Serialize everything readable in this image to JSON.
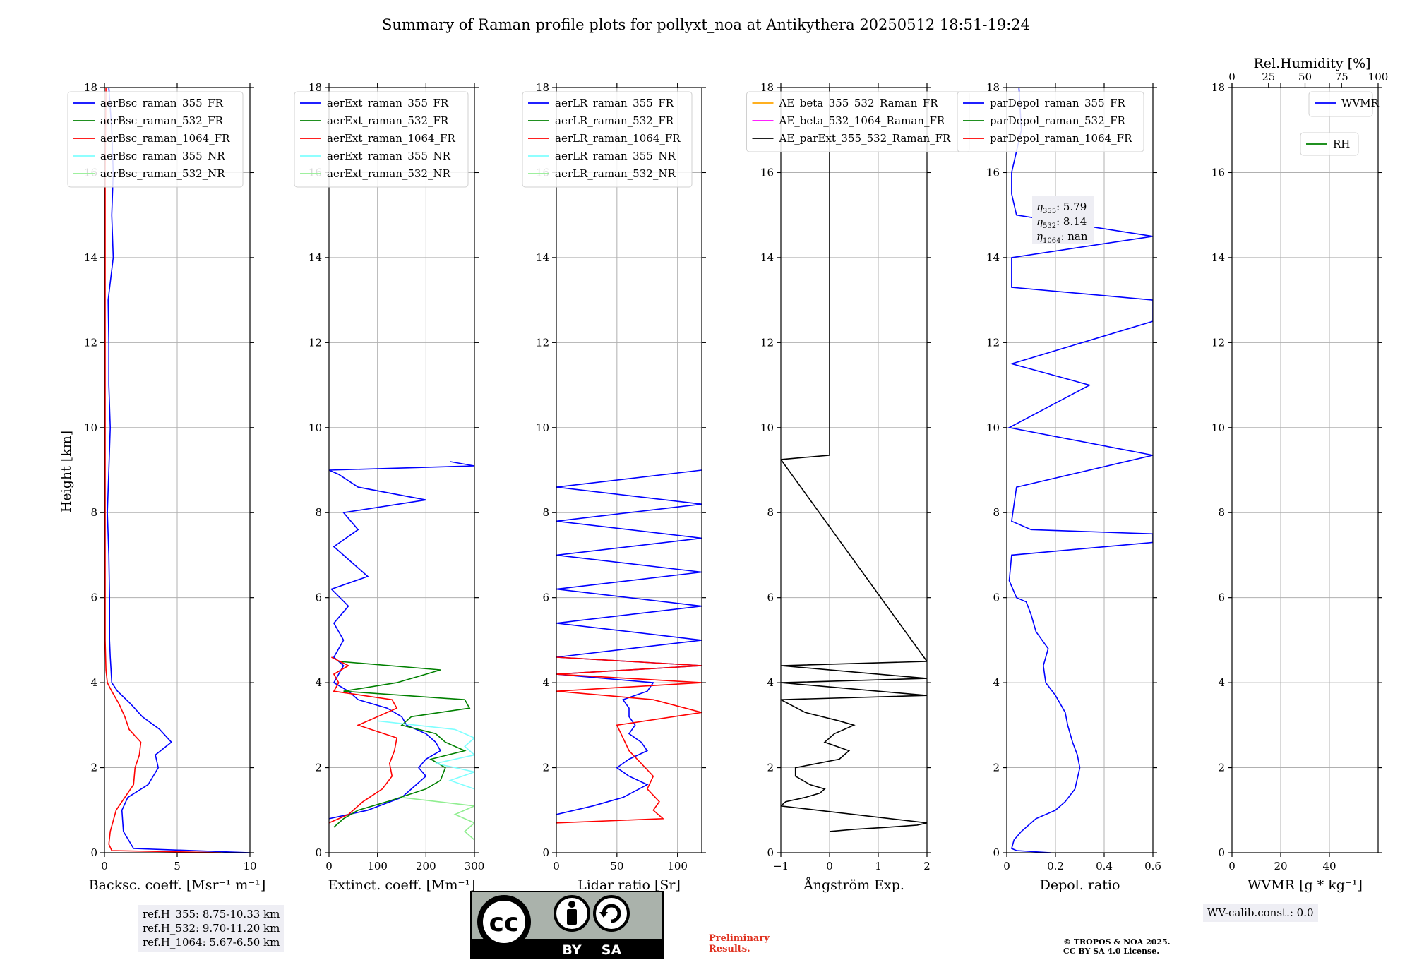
{
  "title": "Summary of Raman profile plots for pollyxt_noa at Antikythera 20250512 18:51-19:24",
  "colors": {
    "blue": "#0000ff",
    "green": "#008000",
    "red": "#ff0000",
    "cyan": "#7fffff",
    "light_green": "#90ee90",
    "orange": "#ffa500",
    "magenta": "#ff00ff",
    "black": "#000000",
    "note_bg": "#eeeef4",
    "grid": "#b0b0b0"
  },
  "y_axis": {
    "label": "Height [km]",
    "ylim": [
      0,
      18
    ],
    "ticks": [
      0,
      2,
      4,
      6,
      8,
      10,
      12,
      14,
      16,
      18
    ]
  },
  "chart_data": [
    {
      "type": "line",
      "xlabel": "Backsc. coeff. [Msr⁻¹ m⁻¹]",
      "xlim": [
        0,
        10
      ],
      "xticks": [
        0,
        5,
        10
      ],
      "grid": true,
      "legend_position": "top-left",
      "series": [
        {
          "name": "aerBsc_raman_355_FR",
          "color": "#0000ff",
          "y": [
            0,
            0.1,
            0.5,
            1.0,
            1.3,
            1.6,
            2.0,
            2.3,
            2.6,
            2.9,
            3.2,
            3.5,
            3.8,
            4.0,
            4.3,
            4.6,
            5.0,
            6.0,
            7.0,
            8.0,
            9.0,
            10.0,
            11.0,
            12.0,
            13.0,
            14.0,
            15.0,
            16.0,
            17.0,
            18.0
          ],
          "x": [
            10.0,
            2.0,
            1.3,
            1.2,
            1.6,
            3.0,
            3.7,
            3.5,
            4.6,
            3.8,
            2.6,
            1.8,
            0.9,
            0.5,
            0.45,
            0.4,
            0.35,
            0.35,
            0.3,
            0.2,
            0.3,
            0.4,
            0.3,
            0.3,
            0.25,
            0.6,
            0.5,
            0.6,
            0.5,
            0.3
          ]
        },
        {
          "name": "aerBsc_raman_532_FR",
          "color": "#008000",
          "y": [],
          "x": []
        },
        {
          "name": "aerBsc_raman_1064_FR",
          "color": "#ff0000",
          "y": [
            0,
            0.05,
            0.2,
            0.5,
            1.0,
            1.3,
            1.6,
            2.0,
            2.3,
            2.6,
            2.9,
            3.2,
            3.5,
            3.8,
            4.0,
            4.3,
            5.0,
            8.0,
            12.0,
            16.0,
            18.0
          ],
          "x": [
            8.0,
            0.5,
            0.3,
            0.4,
            0.8,
            1.4,
            2.0,
            2.1,
            2.4,
            2.5,
            1.7,
            1.4,
            1.0,
            0.5,
            0.2,
            0.1,
            0.05,
            0.05,
            0.05,
            0.05,
            0.1
          ]
        },
        {
          "name": "aerBsc_raman_355_NR",
          "color": "#7fffff",
          "y": [],
          "x": []
        },
        {
          "name": "aerBsc_raman_532_NR",
          "color": "#90ee90",
          "y": [],
          "x": []
        }
      ]
    },
    {
      "type": "line",
      "xlabel": "Extinct. coeff. [Mm⁻¹]",
      "xlim": [
        0,
        300
      ],
      "xticks": [
        0,
        100,
        200,
        300
      ],
      "grid": true,
      "legend_position": "top-left",
      "series": [
        {
          "name": "aerExt_raman_355_FR",
          "color": "#0000ff",
          "y": [
            0.8,
            1.0,
            1.3,
            1.6,
            1.8,
            2.0,
            2.2,
            2.4,
            2.6,
            2.8,
            3.0,
            3.2,
            3.4,
            3.6,
            3.8,
            4.0,
            4.2,
            4.4,
            4.6,
            5.0,
            5.4,
            5.8,
            6.2,
            6.5,
            6.8,
            7.2,
            7.6,
            8.0,
            8.3,
            8.6,
            8.9,
            9.0,
            9.1,
            9.2
          ],
          "x": [
            0,
            80,
            150,
            180,
            200,
            185,
            200,
            230,
            220,
            200,
            160,
            150,
            120,
            60,
            40,
            10,
            20,
            30,
            10,
            30,
            10,
            40,
            5,
            80,
            50,
            10,
            60,
            30,
            200,
            60,
            20,
            0,
            300,
            250
          ]
        },
        {
          "name": "aerExt_raman_532_FR",
          "color": "#008000",
          "y": [
            0.6,
            0.8,
            1.0,
            1.2,
            1.5,
            1.7,
            2.0,
            2.2,
            2.4,
            2.6,
            2.8,
            3.0,
            3.2,
            3.4,
            3.6,
            3.8,
            4.0,
            4.2,
            4.3,
            4.5
          ],
          "x": [
            10,
            30,
            60,
            120,
            200,
            230,
            240,
            210,
            280,
            240,
            220,
            150,
            170,
            290,
            280,
            30,
            140,
            200,
            230,
            20
          ]
        },
        {
          "name": "aerExt_raman_1064_FR",
          "color": "#ff0000",
          "y": [
            0.7,
            0.9,
            1.2,
            1.5,
            1.8,
            2.1,
            2.4,
            2.7,
            3.0,
            3.2,
            3.4,
            3.6,
            3.8,
            4.0,
            4.2,
            4.4,
            4.6
          ],
          "x": [
            0,
            40,
            70,
            110,
            130,
            125,
            135,
            140,
            60,
            100,
            140,
            130,
            10,
            20,
            10,
            40,
            5
          ]
        },
        {
          "name": "aerExt_raman_355_NR",
          "color": "#7fffff",
          "y": [
            1.5,
            1.7,
            1.9,
            2.1,
            2.3,
            2.5,
            2.7,
            2.9,
            3.1
          ],
          "x": [
            300,
            250,
            300,
            220,
            300,
            280,
            300,
            260,
            100
          ]
        },
        {
          "name": "aerExt_raman_532_NR",
          "color": "#90ee90",
          "y": [
            0.3,
            0.5,
            0.7,
            0.9,
            1.1,
            1.3
          ],
          "x": [
            300,
            280,
            300,
            260,
            300,
            150
          ]
        }
      ]
    },
    {
      "type": "line",
      "xlabel": "Lidar ratio [Sr]",
      "xlim": [
        0,
        120
      ],
      "xticks": [
        0,
        50,
        100
      ],
      "grid": true,
      "legend_position": "top-left",
      "series": [
        {
          "name": "aerLR_raman_355_FR",
          "color": "#0000ff",
          "y": [
            0.9,
            1.1,
            1.3,
            1.6,
            1.8,
            2.0,
            2.2,
            2.4,
            2.6,
            2.8,
            3.0,
            3.2,
            3.4,
            3.6,
            3.8,
            4.0,
            4.2,
            4.4,
            4.6,
            5.0,
            5.4,
            5.8,
            6.2,
            6.6,
            7.0,
            7.4,
            7.8,
            8.2,
            8.6,
            9.0
          ],
          "x": [
            0,
            30,
            55,
            75,
            60,
            50,
            60,
            75,
            70,
            60,
            65,
            60,
            60,
            55,
            75,
            80,
            0,
            120,
            0,
            120,
            0,
            120,
            0,
            120,
            0,
            120,
            0,
            120,
            0,
            120
          ]
        },
        {
          "name": "aerLR_raman_532_FR",
          "color": "#008000",
          "y": [],
          "x": []
        },
        {
          "name": "aerLR_raman_1064_FR",
          "color": "#ff0000",
          "y": [
            0.7,
            0.8,
            1.0,
            1.2,
            1.5,
            1.8,
            2.1,
            2.4,
            2.7,
            3.0,
            3.3,
            3.6,
            3.8,
            4.0,
            4.2,
            4.4,
            4.6
          ],
          "x": [
            0,
            88,
            80,
            85,
            75,
            80,
            70,
            60,
            55,
            50,
            120,
            80,
            0,
            120,
            0,
            120,
            0
          ]
        },
        {
          "name": "aerLR_raman_355_NR",
          "color": "#7fffff",
          "y": [],
          "x": []
        },
        {
          "name": "aerLR_raman_532_NR",
          "color": "#90ee90",
          "y": [],
          "x": []
        }
      ]
    },
    {
      "type": "line",
      "xlabel": "Ångström Exp.",
      "xlim": [
        -1,
        2
      ],
      "xticks": [
        -1,
        0,
        1,
        2
      ],
      "grid": true,
      "legend_position": "top-center",
      "series": [
        {
          "name": "AE_beta_355_532_Raman_FR",
          "color": "#ffa500",
          "y": [],
          "x": []
        },
        {
          "name": "AE_beta_532_1064_Raman_FR",
          "color": "#ff00ff",
          "y": [],
          "x": []
        },
        {
          "name": "AE_parExt_355_532_Raman_FR",
          "color": "#000000",
          "y": [
            0.5,
            0.55,
            0.6,
            0.65,
            0.7,
            1.1,
            1.2,
            1.3,
            1.4,
            1.5,
            1.6,
            1.8,
            2.0,
            2.2,
            2.4,
            2.6,
            2.8,
            3.0,
            3.1,
            3.3,
            3.6,
            3.7,
            4.0,
            4.1,
            4.4,
            4.5,
            9.25,
            9.35,
            18.0
          ],
          "x": [
            0,
            0.5,
            1.2,
            1.8,
            2.0,
            -1.0,
            -0.9,
            -0.5,
            -0.2,
            -0.1,
            -0.4,
            -0.7,
            -0.7,
            0.2,
            0.4,
            -0.1,
            0.1,
            0.5,
            0.2,
            -0.5,
            -1.0,
            2.0,
            -1.0,
            2.0,
            -1.0,
            2.0,
            -1.0,
            0,
            0
          ]
        }
      ]
    },
    {
      "type": "line",
      "xlabel": "Depol. ratio",
      "xlim": [
        0.0,
        0.6
      ],
      "xticks": [
        0.0,
        0.2,
        0.4,
        0.6
      ],
      "grid": true,
      "legend_position": "top-left",
      "annotation": {
        "eta_355": "5.79",
        "eta_532": "8.14",
        "eta_1064": "nan"
      },
      "series": [
        {
          "name": "parDepol_raman_355_FR",
          "color": "#0000ff",
          "y": [
            0,
            0.05,
            0.1,
            0.3,
            0.5,
            0.8,
            1.0,
            1.2,
            1.5,
            2.0,
            2.3,
            2.6,
            3.0,
            3.3,
            3.7,
            4.0,
            4.4,
            4.8,
            5.2,
            5.6,
            5.9,
            6.0,
            6.4,
            7.0,
            7.3,
            7.4,
            7.5,
            7.6,
            7.8,
            8.6,
            9.35,
            10.0,
            11.0,
            11.5,
            12.5,
            12.7,
            13.0,
            13.3,
            14.0,
            14.5,
            15.0,
            15.5,
            16.0,
            17.0,
            18.0
          ],
          "x": [
            0.18,
            0.04,
            0.02,
            0.03,
            0.06,
            0.12,
            0.2,
            0.24,
            0.28,
            0.3,
            0.29,
            0.27,
            0.25,
            0.24,
            0.2,
            0.16,
            0.15,
            0.17,
            0.12,
            0.1,
            0.08,
            0.04,
            0.01,
            0.02,
            0.6,
            0.6,
            0.6,
            0.1,
            0.02,
            0.04,
            0.6,
            0.01,
            0.34,
            0.02,
            0.6,
            0.6,
            0.6,
            0.02,
            0.02,
            0.6,
            0.04,
            0.02,
            0.02,
            0.06,
            0.05
          ]
        },
        {
          "name": "parDepol_raman_532_FR",
          "color": "#008000",
          "y": [],
          "x": []
        },
        {
          "name": "parDepol_raman_1064_FR",
          "color": "#ff0000",
          "y": [],
          "x": []
        }
      ]
    },
    {
      "type": "line",
      "xlabel": "WVMR [g * kg⁻¹]",
      "xlim": [
        0,
        60
      ],
      "xticks": [
        0,
        20,
        40
      ],
      "grid": true,
      "top_axis": {
        "label": "Rel.Humidity [%]",
        "xlim": [
          0,
          100
        ],
        "ticks": [
          0,
          25,
          50,
          75,
          100
        ]
      },
      "legend_position": "top-right",
      "series": [
        {
          "name": "WVMR",
          "color": "#0000ff",
          "y": [],
          "x": []
        },
        {
          "name": "RH",
          "color": "#008000",
          "y": [],
          "x": []
        }
      ]
    }
  ],
  "notes": {
    "reference_heights": [
      "ref.H_355: 8.75-10.33 km",
      "ref.H_532: 9.70-11.20 km",
      "ref.H_1064: 5.67-6.50 km"
    ],
    "wv_calib": "WV-calib.const.: 0.0",
    "preliminary": [
      "Preliminary",
      "Results."
    ],
    "copyright": [
      "© TROPOS & NOA 2025.",
      "CC BY SA 4.0 License."
    ],
    "license_badge": {
      "cc": "cc",
      "by": "BY",
      "sa": "SA"
    }
  }
}
